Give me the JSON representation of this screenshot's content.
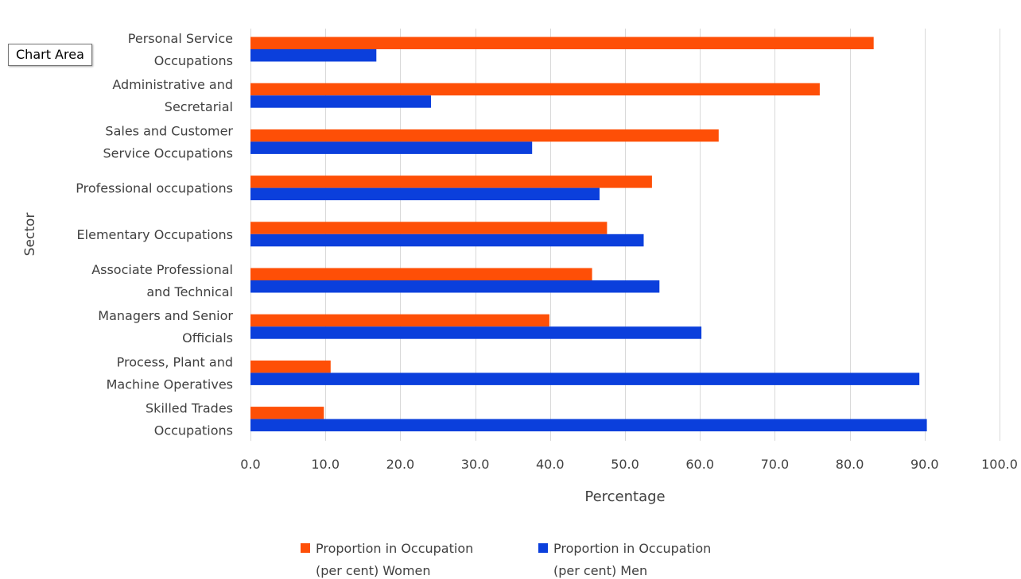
{
  "tooltip": "Chart Area",
  "colors": {
    "women": "#fe4f07",
    "men": "#0b3fdc",
    "grid": "#d9d9d9",
    "text": "#404040"
  },
  "chart_data": {
    "type": "bar",
    "orientation": "horizontal",
    "title": "",
    "xlabel": "Percentage",
    "ylabel": "Sector",
    "xlim": [
      0,
      100
    ],
    "xticks": [
      "0.0",
      "10.0",
      "20.0",
      "30.0",
      "40.0",
      "50.0",
      "60.0",
      "70.0",
      "80.0",
      "90.0",
      "100.0"
    ],
    "grid": "vertical",
    "legend": "bottom-center",
    "categories": [
      [
        "Personal Service",
        "Occupations"
      ],
      [
        "Administrative and",
        "Secretarial"
      ],
      [
        "Sales and Customer",
        "Service Occupations"
      ],
      [
        "Professional occupations"
      ],
      [
        "Elementary Occupations"
      ],
      [
        "Associate Professional",
        "and Technical"
      ],
      [
        "Managers and Senior",
        "Officials"
      ],
      [
        "Process, Plant and",
        "Machine Operatives"
      ],
      [
        "Skilled Trades",
        "Occupations"
      ]
    ],
    "series": [
      {
        "name": [
          "Proportion in Occupation",
          "(per cent) Women"
        ],
        "color": "#fe4f07",
        "values": [
          83.2,
          76.0,
          62.5,
          53.6,
          47.6,
          45.6,
          39.9,
          10.7,
          9.8
        ]
      },
      {
        "name": [
          "Proportion in Occupation",
          "(per cent) Men"
        ],
        "color": "#0b3fdc",
        "values": [
          16.8,
          24.1,
          37.6,
          46.6,
          52.5,
          54.6,
          60.2,
          89.3,
          90.3
        ]
      }
    ]
  }
}
